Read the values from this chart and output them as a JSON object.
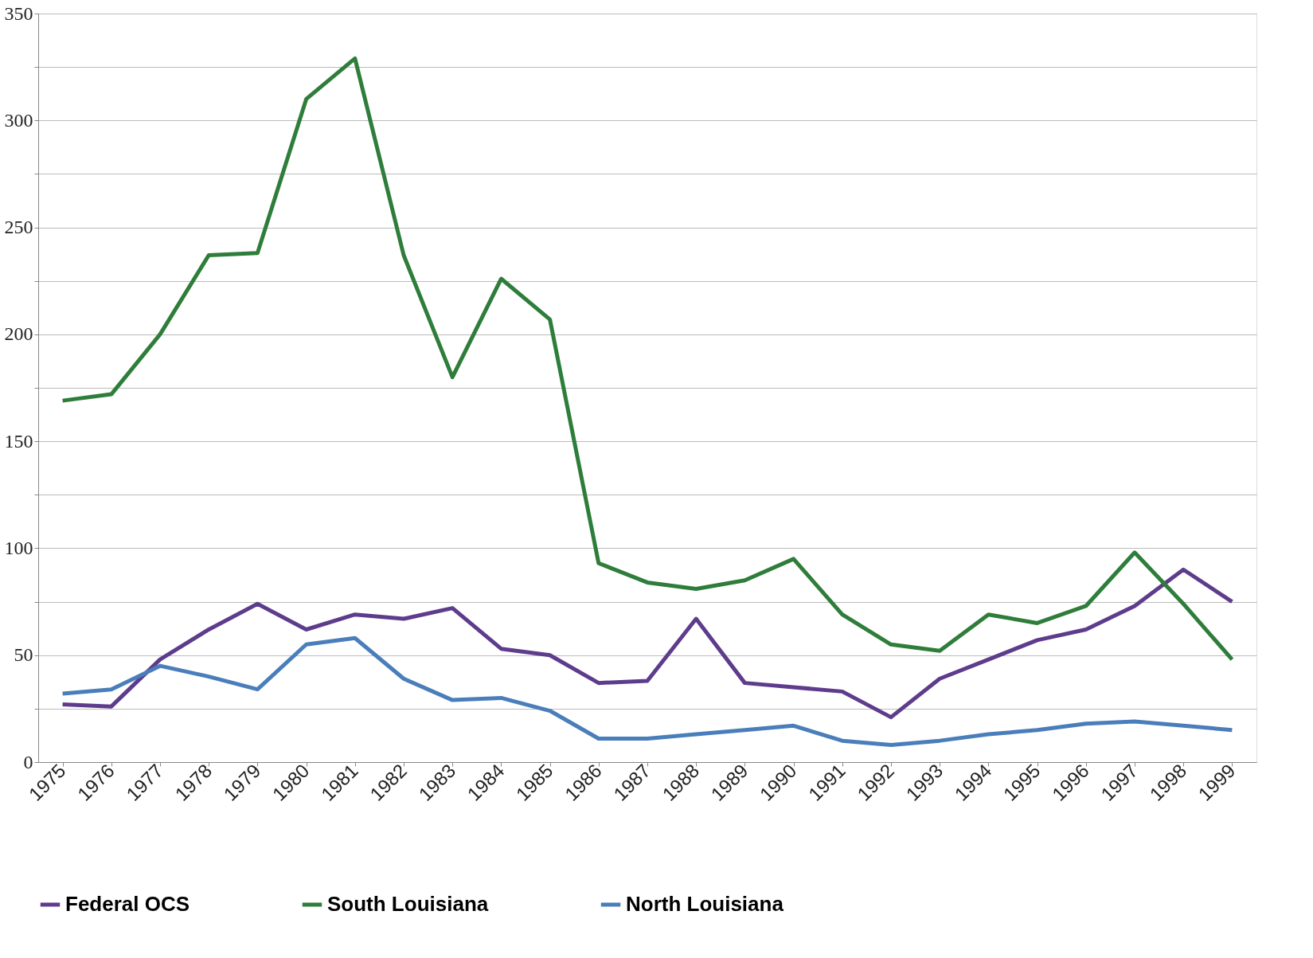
{
  "chart_data": {
    "type": "line",
    "categories": [
      "1975",
      "1976",
      "1977",
      "1978",
      "1979",
      "1980",
      "1981",
      "1982",
      "1983",
      "1984",
      "1985",
      "1986",
      "1987",
      "1988",
      "1989",
      "1990",
      "1991",
      "1992",
      "1993",
      "1994",
      "1995",
      "1996",
      "1997",
      "1998",
      "1999"
    ],
    "series": [
      {
        "name": "Federal OCS",
        "color": "#5e3c8c",
        "values": [
          27,
          26,
          48,
          62,
          74,
          62,
          69,
          67,
          72,
          53,
          50,
          37,
          38,
          67,
          37,
          35,
          33,
          21,
          39,
          48,
          57,
          62,
          73,
          90,
          75
        ]
      },
      {
        "name": "South Louisiana",
        "color": "#2e7d3a",
        "values": [
          169,
          172,
          200,
          237,
          238,
          310,
          329,
          237,
          180,
          226,
          207,
          93,
          84,
          81,
          85,
          95,
          69,
          55,
          52,
          69,
          65,
          73,
          98,
          74,
          48
        ]
      },
      {
        "name": "North Louisiana",
        "color": "#4a7ebb",
        "values": [
          32,
          34,
          45,
          40,
          34,
          55,
          58,
          39,
          29,
          30,
          24,
          11,
          11,
          13,
          15,
          17,
          10,
          8,
          10,
          13,
          15,
          18,
          19,
          17,
          15
        ]
      }
    ],
    "ylim": [
      0,
      350
    ],
    "yticks": [
      0,
      {
        "value": 25,
        "label": null
      },
      50,
      {
        "value": 75,
        "label": null
      },
      100,
      {
        "value": 125,
        "label": null
      },
      150,
      {
        "value": 175,
        "label": null
      },
      200,
      {
        "value": 225,
        "label": null
      },
      250,
      {
        "value": 275,
        "label": null
      },
      300,
      {
        "value": 325,
        "label": null
      },
      350
    ],
    "grid": "y",
    "legend": "bottom",
    "marker": "none",
    "line_style": "solid"
  }
}
